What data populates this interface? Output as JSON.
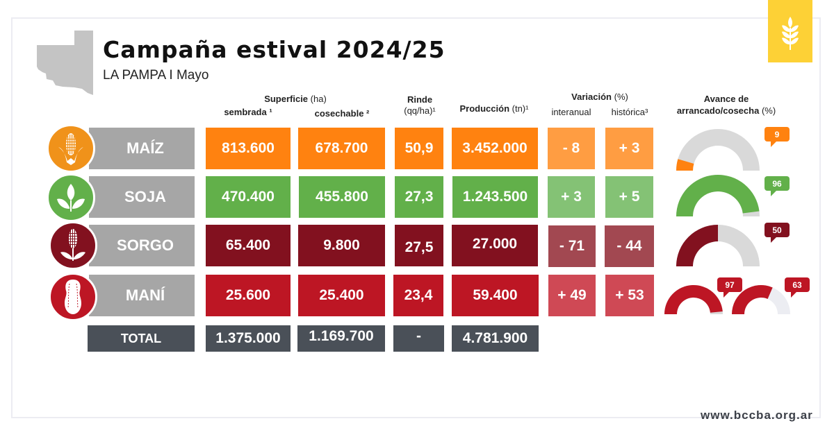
{
  "header": {
    "title": "Campaña estival 2024/25",
    "subtitle": "LA PAMPA I Mayo"
  },
  "columns": {
    "superficie": "Superficie",
    "superficie_unit": "(ha)",
    "sembrada": "sembrada ¹",
    "cosechable": "cosechable ²",
    "rinde": "Rinde",
    "rinde_unit": "(qq/ha)¹",
    "produccion": "Producción",
    "produccion_unit": "(tn)¹",
    "variacion": "Variación",
    "variacion_unit": "(%)",
    "interanual": "interanual",
    "historica": "histórica³",
    "avance_line1": "Avance de",
    "avance_line2": "arrancado/cosecha",
    "avance_unit": "(%)"
  },
  "colors": {
    "maiz": "#ff8210",
    "maiz_light": "#ff9d42",
    "maiz_icon": "#f0921a",
    "soja": "#62b04a",
    "soja_light": "#84c275",
    "sorgo": "#82111f",
    "sorgo_light": "#a24851",
    "mani": "#bd1624",
    "mani_light": "#cf4955",
    "total": "#4a5058",
    "gauge_track": "#d9d9d9",
    "label_bar": "#a6a6a6",
    "logo": "#fdd136"
  },
  "crops": [
    {
      "key": "maiz",
      "name": "MAÍZ",
      "icon": "corn-icon",
      "sembrada": "813.600",
      "cosechable": "678.700",
      "rinde": "50,9",
      "produccion": "3.452.000",
      "interanual": "- 8",
      "historica": "+ 3",
      "avance": [
        9
      ]
    },
    {
      "key": "soja",
      "name": "SOJA",
      "icon": "soybean-leaves-icon",
      "sembrada": "470.400",
      "cosechable": "455.800",
      "rinde": "27,3",
      "produccion": "1.243.500",
      "interanual": "+ 3",
      "historica": "+ 5",
      "avance": [
        96
      ]
    },
    {
      "key": "sorgo",
      "name": "SORGO",
      "icon": "sorghum-icon",
      "sembrada": "65.400",
      "cosechable": "9.800",
      "rinde": "27,5",
      "produccion": "27.000",
      "interanual": "- 71",
      "historica": "- 44",
      "avance": [
        50
      ]
    },
    {
      "key": "mani",
      "name": "MANÍ",
      "icon": "peanut-icon",
      "sembrada": "25.600",
      "cosechable": "25.400",
      "rinde": "23,4",
      "produccion": "59.400",
      "interanual": "+ 49",
      "historica": "+ 53",
      "avance": [
        97,
        63
      ]
    }
  ],
  "total": {
    "label": "TOTAL",
    "sembrada": "1.375.000",
    "cosechable": "1.169.700",
    "rinde": "-",
    "produccion": "4.781.900"
  },
  "footer": {
    "url": "www.bccba.org.ar"
  }
}
